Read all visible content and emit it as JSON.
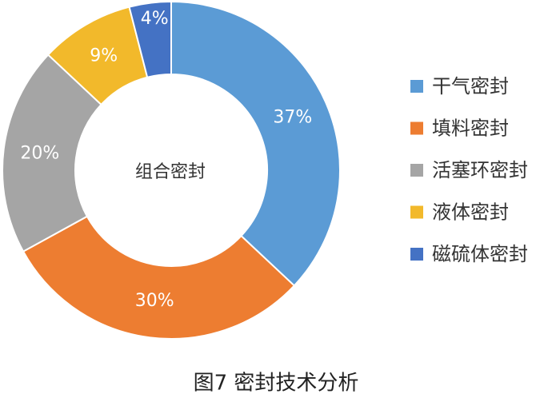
{
  "chart_data": {
    "type": "donut",
    "title": "图7 密封技术分析",
    "center_label": "组合密封",
    "categories": [
      "干气密封",
      "填料密封",
      "活塞环密封",
      "液体密封",
      "磁硫体密封"
    ],
    "values": [
      37,
      30,
      20,
      9,
      4
    ],
    "value_labels": [
      "37%",
      "30%",
      "20%",
      "9%",
      "4%"
    ],
    "colors": [
      "#5b9bd5",
      "#ed7d31",
      "#a5a5a5",
      "#f2b92b",
      "#4472c4"
    ],
    "legend": "right"
  }
}
